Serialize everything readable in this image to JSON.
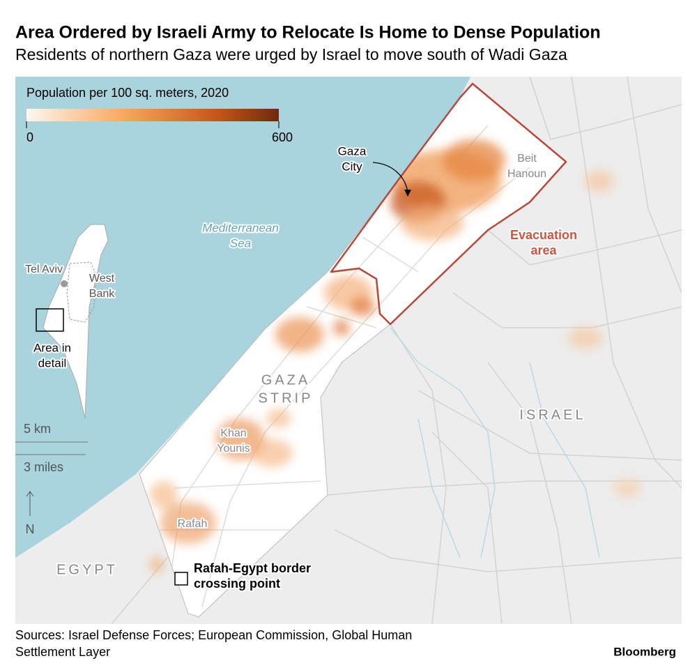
{
  "header": {
    "title": "Area Ordered by Israeli Army to Relocate Is Home to Dense Population",
    "subtitle": "Residents of northern Gaza were urged by Israel to move south of Wadi Gaza"
  },
  "legend": {
    "title": "Population per 100 sq. meters, 2020",
    "min": 0,
    "max": 600
  },
  "labels": [
    [
      "Gaza",
      "City"
    ],
    [
      "Beit",
      "Hanoun"
    ],
    [
      "Mediterranean",
      "Sea"
    ],
    [
      "Evacuation",
      "area"
    ],
    [
      "Tel Aviv"
    ],
    [
      "West",
      "Bank"
    ],
    [
      "Area in",
      "detail"
    ],
    [
      "GAZA",
      "STRIP"
    ],
    [
      "Khan",
      "Younis"
    ],
    [
      "Rafah"
    ],
    [
      "ISRAEL"
    ],
    [
      "EGYPT"
    ],
    [
      "Rafah-Egypt border",
      "crossing point"
    ]
  ],
  "scale": {
    "km": "5 km",
    "miles": "3 miles"
  },
  "north": "N",
  "footer": {
    "sources": [
      "Sources: Israel Defense Forces; European Commission, Global Human",
      "Settlement Layer"
    ],
    "credit": "Bloomberg"
  }
}
